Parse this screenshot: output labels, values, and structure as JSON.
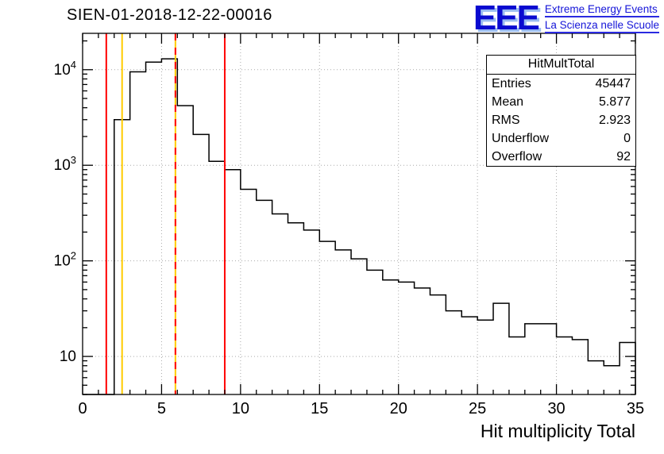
{
  "header": {
    "title": "SIEN-01-2018-12-22-00016"
  },
  "logo": {
    "acronym": "EEE",
    "line1": "Extreme Energy Events",
    "line2": "La Scienza nelle Scuole",
    "color": "#0a0ad0"
  },
  "stats": {
    "title": "HitMultTotal",
    "rows": [
      {
        "label": "Entries",
        "value": "45447"
      },
      {
        "label": "Mean",
        "value": "5.877"
      },
      {
        "label": "RMS",
        "value": "2.923"
      },
      {
        "label": "Underflow",
        "value": "0"
      },
      {
        "label": "Overflow",
        "value": "92"
      }
    ]
  },
  "chart_data": {
    "type": "bar",
    "subtype": "step-histogram",
    "title": "SIEN-01-2018-12-22-00016",
    "xlabel": "Hit multiplicity Total",
    "ylabel": "",
    "xlim": [
      0,
      35
    ],
    "yscale": "log",
    "ylim": [
      4,
      24000
    ],
    "x_major_ticks": [
      0,
      5,
      10,
      15,
      20,
      25,
      30,
      35
    ],
    "x_minor_step": 1,
    "y_major_ticks": [
      10,
      100,
      1000,
      10000
    ],
    "grid": true,
    "bin_width": 1,
    "bin_start": 0,
    "counts": [
      0,
      0,
      3000,
      9500,
      12000,
      13000,
      4200,
      2100,
      1100,
      900,
      560,
      430,
      310,
      250,
      210,
      160,
      130,
      105,
      80,
      63,
      60,
      52,
      44,
      30,
      26,
      24,
      36,
      16,
      22,
      22,
      16,
      15,
      9,
      8,
      14
    ],
    "line_color": "#000000",
    "vlines": [
      {
        "name": "lower-red-cut",
        "x": 1.5,
        "color": "#ff0000",
        "style": "solid"
      },
      {
        "name": "lower-yellow-cut",
        "x": 2.5,
        "color": "#ffcc00",
        "style": "solid"
      },
      {
        "name": "mean-line-yellow",
        "x": 5.877,
        "color": "#ffcc00",
        "style": "solid"
      },
      {
        "name": "mean-line-red-dashed",
        "x": 5.877,
        "color": "#ff0000",
        "style": "dashed"
      },
      {
        "name": "upper-red-cut",
        "x": 9.0,
        "color": "#ff0000",
        "style": "solid"
      }
    ],
    "grid_color": "#aaaaaa",
    "legend_position": "none"
  }
}
